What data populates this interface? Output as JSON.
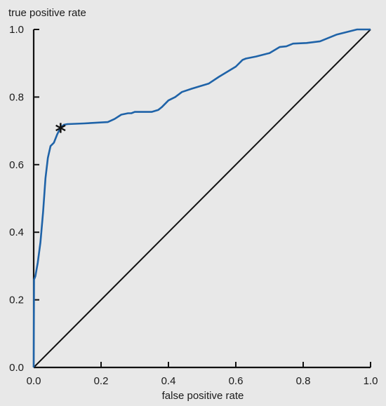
{
  "chart_data": {
    "type": "line",
    "title": "",
    "xlabel": "false positive rate",
    "ylabel": "true positive rate",
    "xlim": [
      0,
      1
    ],
    "ylim": [
      0,
      1
    ],
    "xticks": [
      "0.0",
      "0.2",
      "0.4",
      "0.6",
      "0.8",
      "1.0"
    ],
    "yticks": [
      "0.0",
      "0.2",
      "0.4",
      "0.6",
      "0.8",
      "1.0"
    ],
    "grid": false,
    "colors": {
      "curve": "#1f63a8",
      "diagonal": "#111111",
      "axis": "#111111"
    },
    "series": [
      {
        "x": [
          0,
          0.001,
          0.005,
          0.012,
          0.02,
          0.028,
          0.035,
          0.042,
          0.05,
          0.06,
          0.07,
          0.08,
          0.09,
          0.1,
          0.15,
          0.22,
          0.24,
          0.26,
          0.27,
          0.28,
          0.29,
          0.3,
          0.35,
          0.37,
          0.38,
          0.4,
          0.42,
          0.44,
          0.47,
          0.52,
          0.55,
          0.6,
          0.62,
          0.63,
          0.66,
          0.7,
          0.73,
          0.75,
          0.77,
          0.81,
          0.85,
          0.9,
          0.96,
          1.0
        ],
        "y": [
          0,
          0.26,
          0.27,
          0.31,
          0.37,
          0.46,
          0.56,
          0.62,
          0.655,
          0.665,
          0.69,
          0.71,
          0.718,
          0.72,
          0.722,
          0.726,
          0.735,
          0.748,
          0.75,
          0.752,
          0.752,
          0.756,
          0.756,
          0.762,
          0.77,
          0.79,
          0.8,
          0.815,
          0.825,
          0.84,
          0.86,
          0.89,
          0.91,
          0.914,
          0.92,
          0.93,
          0.948,
          0.95,
          0.958,
          0.96,
          0.965,
          0.985,
          1.0,
          1.0
        ]
      },
      {
        "x": [
          0,
          1
        ],
        "y": [
          0,
          1
        ]
      }
    ],
    "annotations": [
      {
        "text": "*",
        "x": 0.08,
        "y": 0.712
      }
    ]
  }
}
